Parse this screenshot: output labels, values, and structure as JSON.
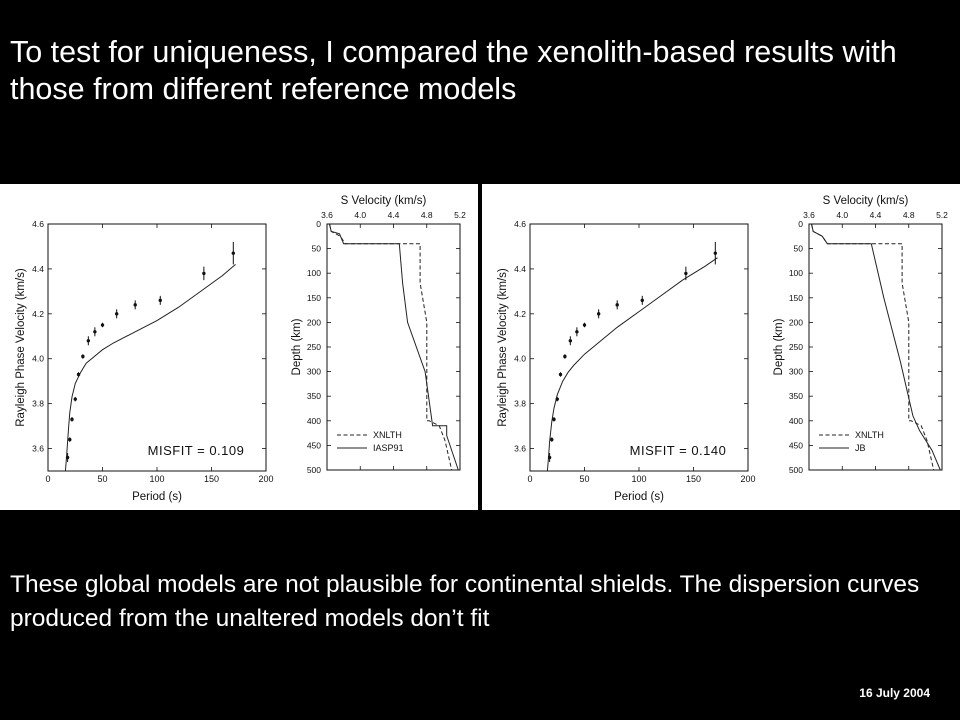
{
  "slide": {
    "title": "To test for uniqueness, I compared the xenolith-based results with those from different reference models",
    "caption": "These global models are not plausible for continental shields.  The dispersion curves produced from the unaltered models don’t fit",
    "date": "16 July 2004"
  },
  "chart_data": [
    {
      "type": "line",
      "panel": "left",
      "xlabel": "Period  (s)",
      "ylabel": "Rayleigh  Phase  Velocity  (km/s)",
      "xlim": [
        0,
        200
      ],
      "ylim": [
        3.5,
        4.6
      ],
      "xticks": [
        0,
        50,
        100,
        150,
        200
      ],
      "yticks": [
        3.6,
        3.8,
        4.0,
        4.2,
        4.4,
        4.6
      ],
      "annotation": "MISFIT  =  0.109",
      "observed": [
        {
          "x": 18,
          "y": 3.56,
          "err": 0.02
        },
        {
          "x": 20,
          "y": 3.64,
          "err": 0.01
        },
        {
          "x": 22,
          "y": 3.73,
          "err": 0.01
        },
        {
          "x": 25,
          "y": 3.82,
          "err": 0.01
        },
        {
          "x": 28,
          "y": 3.93,
          "err": 0.01
        },
        {
          "x": 32,
          "y": 4.01,
          "err": 0.01
        },
        {
          "x": 37,
          "y": 4.08,
          "err": 0.02
        },
        {
          "x": 43,
          "y": 4.12,
          "err": 0.02
        },
        {
          "x": 50,
          "y": 4.15,
          "err": 0.01
        },
        {
          "x": 63,
          "y": 4.2,
          "err": 0.02
        },
        {
          "x": 80,
          "y": 4.24,
          "err": 0.02
        },
        {
          "x": 103,
          "y": 4.26,
          "err": 0.02
        },
        {
          "x": 143,
          "y": 4.38,
          "err": 0.03
        },
        {
          "x": 170,
          "y": 4.47,
          "err": 0.05
        }
      ],
      "predicted": {
        "x": [
          16,
          17,
          18,
          19,
          20,
          22,
          25,
          30,
          35,
          40,
          50,
          60,
          80,
          100,
          120,
          140,
          160,
          172
        ],
        "y": [
          3.5,
          3.56,
          3.63,
          3.7,
          3.76,
          3.83,
          3.89,
          3.94,
          3.98,
          4.0,
          4.04,
          4.07,
          4.12,
          4.17,
          4.23,
          4.3,
          4.37,
          4.42
        ]
      }
    },
    {
      "type": "line",
      "panel": "left",
      "xlabel": "S  Velocity  (km/s)",
      "ylabel": "Depth  (km)",
      "xlim": [
        3.6,
        5.2
      ],
      "ylim": [
        0,
        500
      ],
      "xticks": [
        3.6,
        4.0,
        4.4,
        4.8,
        5.2
      ],
      "yticks": [
        0,
        50,
        100,
        150,
        200,
        250,
        300,
        350,
        400,
        450,
        500
      ],
      "series": [
        {
          "name": "XNLTH",
          "style": "dashed",
          "velocity": [
            3.63,
            3.65,
            3.76,
            3.82,
            4.72,
            4.72,
            4.8,
            4.8,
            4.83,
            4.95,
            5.02,
            5.1
          ],
          "depth": [
            0,
            15,
            25,
            40,
            40,
            120,
            200,
            400,
            400,
            410,
            440,
            500
          ]
        },
        {
          "name": "IASP91",
          "style": "solid",
          "velocity": [
            3.63,
            3.65,
            3.75,
            3.8,
            4.47,
            4.51,
            4.57,
            4.78,
            4.87,
            4.87,
            5.04,
            5.04,
            5.18
          ],
          "depth": [
            0,
            15,
            20,
            40,
            40,
            120,
            200,
            300,
            410,
            410,
            410,
            430,
            500
          ]
        }
      ]
    },
    {
      "type": "line",
      "panel": "right",
      "xlabel": "Period  (s)",
      "ylabel": "Rayleigh  Phase  Velocity  (km/s)",
      "xlim": [
        0,
        200
      ],
      "ylim": [
        3.5,
        4.6
      ],
      "xticks": [
        0,
        50,
        100,
        150,
        200
      ],
      "yticks": [
        3.6,
        3.8,
        4.0,
        4.2,
        4.4,
        4.6
      ],
      "annotation": "MISFIT  =  0.140",
      "observed": [
        {
          "x": 18,
          "y": 3.56,
          "err": 0.02
        },
        {
          "x": 20,
          "y": 3.64,
          "err": 0.01
        },
        {
          "x": 22,
          "y": 3.73,
          "err": 0.01
        },
        {
          "x": 25,
          "y": 3.82,
          "err": 0.01
        },
        {
          "x": 28,
          "y": 3.93,
          "err": 0.01
        },
        {
          "x": 32,
          "y": 4.01,
          "err": 0.01
        },
        {
          "x": 37,
          "y": 4.08,
          "err": 0.02
        },
        {
          "x": 43,
          "y": 4.12,
          "err": 0.02
        },
        {
          "x": 50,
          "y": 4.15,
          "err": 0.01
        },
        {
          "x": 63,
          "y": 4.2,
          "err": 0.02
        },
        {
          "x": 80,
          "y": 4.24,
          "err": 0.02
        },
        {
          "x": 103,
          "y": 4.26,
          "err": 0.02
        },
        {
          "x": 143,
          "y": 4.38,
          "err": 0.03
        },
        {
          "x": 170,
          "y": 4.47,
          "err": 0.05
        }
      ],
      "predicted": {
        "x": [
          16,
          17,
          18,
          20,
          22,
          25,
          30,
          35,
          40,
          50,
          60,
          80,
          100,
          120,
          140,
          160,
          172
        ],
        "y": [
          3.5,
          3.56,
          3.63,
          3.72,
          3.78,
          3.84,
          3.9,
          3.94,
          3.97,
          4.02,
          4.06,
          4.14,
          4.21,
          4.28,
          4.35,
          4.41,
          4.45
        ]
      }
    },
    {
      "type": "line",
      "panel": "right",
      "xlabel": "S  Velocity  (km/s)",
      "ylabel": "Depth  (km)",
      "xlim": [
        3.6,
        5.2
      ],
      "ylim": [
        0,
        500
      ],
      "xticks": [
        3.6,
        4.0,
        4.4,
        4.8,
        5.2
      ],
      "yticks": [
        0,
        50,
        100,
        150,
        200,
        250,
        300,
        350,
        400,
        450,
        500
      ],
      "series": [
        {
          "name": "XNLTH",
          "style": "dashed",
          "velocity": [
            3.63,
            3.65,
            3.76,
            3.82,
            4.72,
            4.72,
            4.8,
            4.8,
            4.83,
            4.95,
            5.02,
            5.1
          ],
          "depth": [
            0,
            15,
            25,
            40,
            40,
            120,
            200,
            400,
            400,
            410,
            440,
            500
          ]
        },
        {
          "name": "JB",
          "style": "solid",
          "velocity": [
            3.63,
            3.65,
            3.76,
            3.82,
            4.35,
            4.5,
            4.7,
            4.85,
            4.93,
            5.08,
            5.18
          ],
          "depth": [
            0,
            15,
            25,
            40,
            40,
            150,
            280,
            390,
            420,
            460,
            500
          ]
        }
      ]
    }
  ]
}
